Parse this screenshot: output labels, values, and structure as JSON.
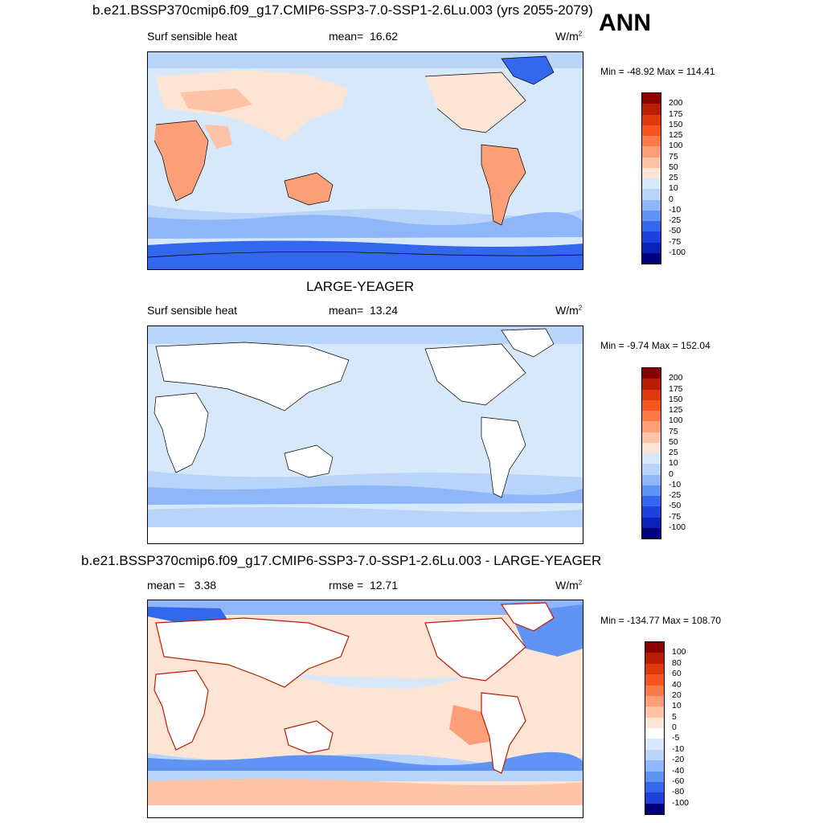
{
  "season": "ANN",
  "units_base": "W/m",
  "units_sup": "2",
  "panels": [
    {
      "title": "b.e21.BSSP370cmip6.f09_g17.CMIP6-SSP3-7.0-SSP1-2.6Lu.003 (yrs 2055-2079)",
      "field": "Surf sensible heat",
      "stat_label": "mean=",
      "stat_value": "16.62",
      "minmax": "Min = -48.92 Max = 114.41",
      "levels": [
        "200",
        "175",
        "150",
        "125",
        "100",
        "75",
        "50",
        "25",
        "10",
        "0",
        "-10",
        "-25",
        "-50",
        "-75",
        "-100"
      ],
      "colors": [
        "#8a0000",
        "#b81d05",
        "#de380c",
        "#f6561d",
        "#fc7a45",
        "#fc9f78",
        "#fcc3a6",
        "#fde5d6",
        "#d8e8fb",
        "#b8d4f9",
        "#8fb6f8",
        "#5f94f4",
        "#3267ee",
        "#1d42dc",
        "#0b22b8",
        "#00007d"
      ]
    },
    {
      "title": "LARGE-YEAGER",
      "field": "Surf sensible heat",
      "stat_label": "mean=",
      "stat_value": "13.24",
      "minmax": "Min =  -9.74 Max = 152.04",
      "levels": [
        "200",
        "175",
        "150",
        "125",
        "100",
        "75",
        "50",
        "25",
        "10",
        "0",
        "-10",
        "-25",
        "-50",
        "-75",
        "-100"
      ],
      "colors": [
        "#8a0000",
        "#b81d05",
        "#de380c",
        "#f6561d",
        "#fc7a45",
        "#fc9f78",
        "#fcc3a6",
        "#fde5d6",
        "#d8e8fb",
        "#b8d4f9",
        "#8fb6f8",
        "#5f94f4",
        "#3267ee",
        "#1d42dc",
        "#0b22b8",
        "#00007d"
      ]
    },
    {
      "title": "b.e21.BSSP370cmip6.f09_g17.CMIP6-SSP3-7.0-SSP1-2.6Lu.003 - LARGE-YEAGER",
      "field": "",
      "stat_label": "mean =",
      "stat_value": "3.38",
      "rmse_label": "rmse =",
      "rmse_value": "12.71",
      "minmax": "Min = -134.77 Max = 108.70",
      "levels": [
        "100",
        "80",
        "60",
        "40",
        "20",
        "10",
        "5",
        "0",
        "-5",
        "-10",
        "-20",
        "-40",
        "-60",
        "-80",
        "-100"
      ],
      "colors": [
        "#8a0000",
        "#b81d05",
        "#de380c",
        "#f6561d",
        "#fc7a45",
        "#fc9f78",
        "#fcc3a6",
        "#fde5d6",
        "#ffffff",
        "#d8e8fb",
        "#b8d4f9",
        "#8fb6f8",
        "#5f94f4",
        "#3267ee",
        "#1d42dc",
        "#00007d"
      ]
    }
  ]
}
